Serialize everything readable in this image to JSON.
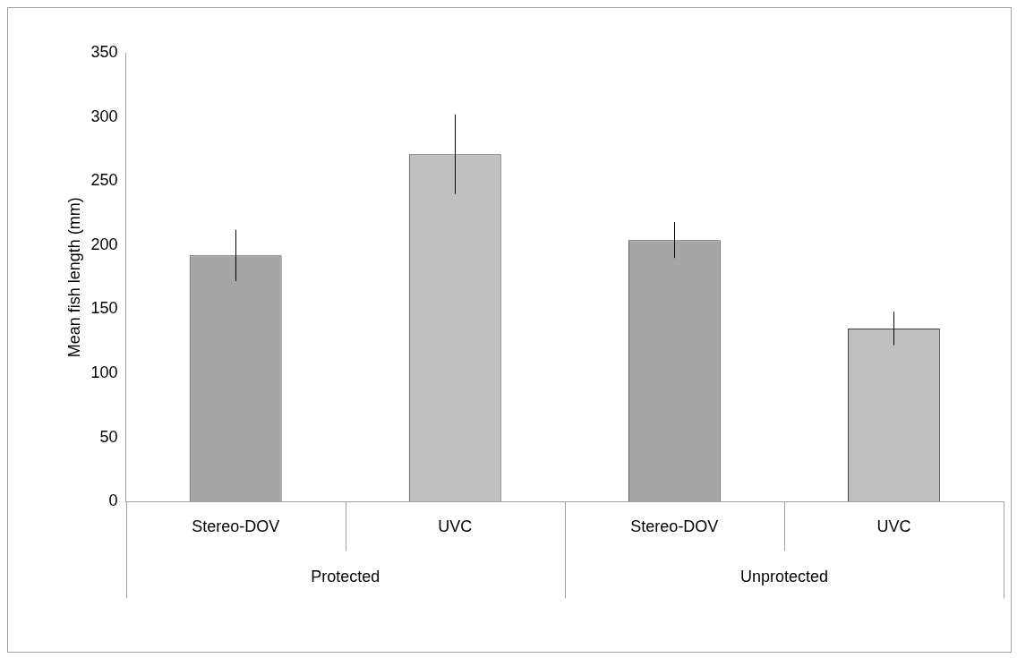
{
  "chart_data": {
    "type": "bar",
    "ylabel": "Mean fish length (mm)",
    "categories": [
      "Stereo-DOV",
      "UVC",
      "Stereo-DOV",
      "UVC"
    ],
    "values": [
      192,
      271,
      204,
      135
    ],
    "colors": [
      "#a6a6a6",
      "#c0c0c0",
      "#a6a6a6",
      "#c0c0c0"
    ],
    "errors": [
      20,
      31,
      14,
      13
    ],
    "ylim": [
      0,
      350
    ],
    "yticks": [
      0,
      50,
      100,
      150,
      200,
      250,
      300,
      350
    ],
    "annotations": [
      "Protected",
      "Unprotected"
    ]
  }
}
